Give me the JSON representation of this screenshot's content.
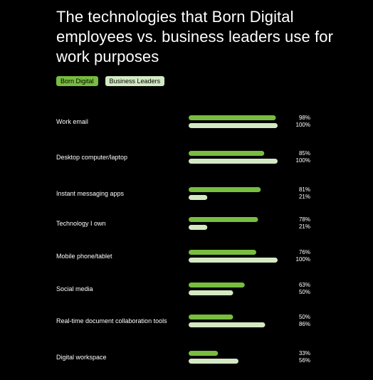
{
  "colors": {
    "background": "#000000",
    "born_digital": "#78bd3f",
    "business_leaders": "#d3e9c3"
  },
  "chart_data": {
    "type": "bar",
    "orientation": "horizontal",
    "title": "The technologies that Born Digital employees vs. business leaders use for work purposes",
    "legend": [
      "Born Digital",
      "Business Leaders"
    ],
    "legend_position": "top-left",
    "grid": false,
    "xlim": [
      0,
      100
    ],
    "categories": [
      "Work email",
      "Desktop computer/laptop",
      "Instant messaging apps",
      "Technology I own",
      "Mobile phone/tablet",
      "Social media",
      "Real-time document collaboration tools",
      "Digital workspace"
    ],
    "series": [
      {
        "name": "Born Digital",
        "values": [
          98,
          85,
          81,
          78,
          76,
          63,
          50,
          33
        ],
        "labels": [
          "98%",
          "85%",
          "81%",
          "78%",
          "76%",
          "63%",
          "50%",
          "33%"
        ]
      },
      {
        "name": "Business Leaders",
        "values": [
          100,
          100,
          21,
          21,
          100,
          50,
          86,
          56
        ],
        "labels": [
          "100%",
          "100%",
          "21%",
          "21%",
          "100%",
          "50%",
          "86%",
          "56%"
        ]
      }
    ]
  }
}
